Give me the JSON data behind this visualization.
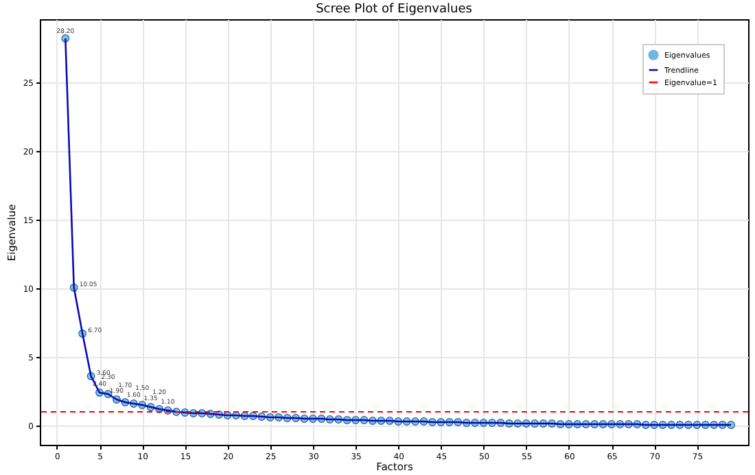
{
  "chart_data": {
    "type": "scatter",
    "title": "Scree Plot of Eigenvalues",
    "xlabel": "Factors",
    "ylabel": "Eigenvalue",
    "x": [
      1,
      2,
      3,
      4,
      5,
      6,
      7,
      8,
      9,
      10,
      11,
      12,
      13,
      14,
      15,
      16,
      17,
      18,
      19,
      20,
      21,
      22,
      23,
      24,
      25,
      26,
      27,
      28,
      29,
      30,
      31,
      32,
      33,
      34,
      35,
      36,
      37,
      38,
      39,
      40,
      41,
      42,
      43,
      44,
      45,
      46,
      47,
      48,
      49,
      50,
      51,
      52,
      53,
      54,
      55,
      56,
      57,
      58,
      59,
      60,
      61,
      62,
      63,
      64,
      65,
      66,
      67,
      68,
      69,
      70,
      71,
      72,
      73,
      74,
      75,
      76,
      77,
      78,
      79
    ],
    "series": [
      {
        "name": "Eigenvalues",
        "color": "#6fb7e0",
        "marker": "circle",
        "values": [
          28.2,
          10.05,
          6.7,
          3.6,
          2.4,
          2.3,
          1.9,
          1.7,
          1.6,
          1.5,
          1.35,
          1.2,
          1.1,
          1.0,
          0.95,
          0.9,
          0.9,
          0.85,
          0.8,
          0.75,
          0.75,
          0.7,
          0.7,
          0.65,
          0.6,
          0.6,
          0.55,
          0.55,
          0.5,
          0.5,
          0.5,
          0.45,
          0.45,
          0.4,
          0.4,
          0.4,
          0.35,
          0.35,
          0.35,
          0.3,
          0.3,
          0.3,
          0.3,
          0.25,
          0.25,
          0.25,
          0.25,
          0.2,
          0.2,
          0.2,
          0.2,
          0.2,
          0.15,
          0.15,
          0.15,
          0.15,
          0.15,
          0.15,
          0.1,
          0.1,
          0.1,
          0.1,
          0.1,
          0.1,
          0.1,
          0.1,
          0.1,
          0.1,
          0.05,
          0.05,
          0.05,
          0.05,
          0.05,
          0.05,
          0.05,
          0.05,
          0.05,
          0.05,
          0.05
        ],
        "value_labels": [
          "28.20",
          "10.05",
          "6.70",
          "3.60",
          "2.40",
          "2.30",
          "1.90",
          "1.70",
          "1.60",
          "1.50",
          "1.35",
          "1.20",
          "1.10",
          null,
          null,
          null,
          null,
          null,
          null,
          null,
          null,
          null,
          null,
          null,
          null,
          null,
          null,
          null,
          null,
          null,
          null,
          null,
          null,
          null,
          null,
          null,
          null,
          null,
          null,
          null,
          null,
          null,
          null,
          null,
          null,
          null,
          null,
          null,
          null,
          null,
          null,
          null,
          null,
          null,
          null,
          null,
          null,
          null,
          null,
          null,
          null,
          null,
          null,
          null,
          null,
          null,
          null,
          null,
          null,
          null,
          null,
          null,
          null,
          null,
          null,
          null,
          null,
          null,
          null
        ]
      },
      {
        "name": "Trendline",
        "type": "line",
        "color": "#0a0ab4",
        "marker": "none",
        "line_style": "solid",
        "values": [
          28.2,
          10.05,
          6.7,
          3.6,
          2.4,
          2.3,
          1.9,
          1.7,
          1.6,
          1.5,
          1.35,
          1.2,
          1.1,
          1.0,
          0.95,
          0.9,
          0.9,
          0.85,
          0.8,
          0.75,
          0.75,
          0.7,
          0.7,
          0.65,
          0.6,
          0.6,
          0.55,
          0.55,
          0.5,
          0.5,
          0.5,
          0.45,
          0.45,
          0.4,
          0.4,
          0.4,
          0.35,
          0.35,
          0.35,
          0.3,
          0.3,
          0.3,
          0.3,
          0.25,
          0.25,
          0.25,
          0.25,
          0.2,
          0.2,
          0.2,
          0.2,
          0.2,
          0.15,
          0.15,
          0.15,
          0.15,
          0.15,
          0.15,
          0.1,
          0.1,
          0.1,
          0.1,
          0.1,
          0.1,
          0.1,
          0.1,
          0.1,
          0.1,
          0.05,
          0.05,
          0.05,
          0.05,
          0.05,
          0.05,
          0.05,
          0.05,
          0.05,
          0.05,
          0.05
        ]
      }
    ],
    "ref_lines": [
      {
        "axis": "y",
        "value": 1,
        "label": "Eigenvalue=1",
        "color": "#ff0000",
        "line_style": "dashed"
      }
    ],
    "xlim": [
      -2,
      81
    ],
    "xticks": [
      0,
      5,
      10,
      15,
      20,
      25,
      30,
      35,
      40,
      45,
      50,
      55,
      60,
      65,
      70,
      75
    ],
    "ylim": [
      -1.4,
      29.6
    ],
    "yticks": [
      0,
      5,
      10,
      15,
      20,
      25
    ],
    "grid": true,
    "legend": "top right"
  }
}
